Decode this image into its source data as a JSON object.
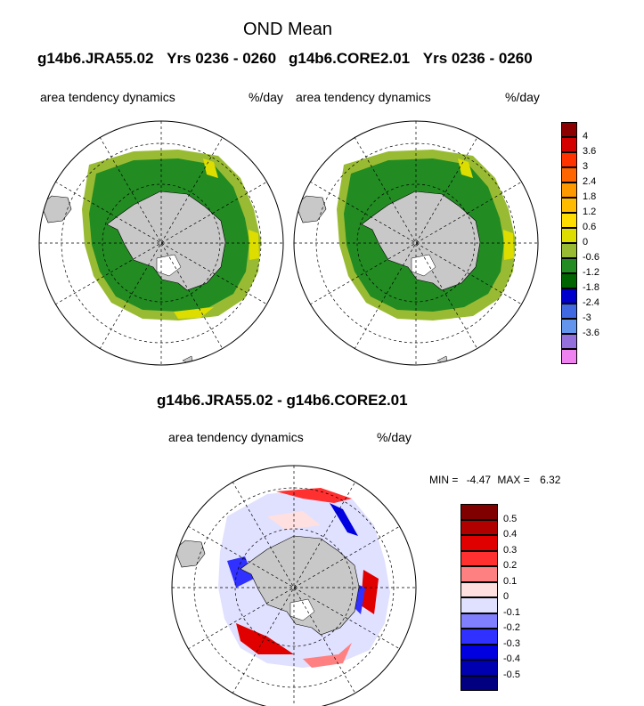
{
  "main_title": "OND Mean",
  "panel_left": {
    "case": "g14b6.JRA55.02",
    "years": "Yrs 0236 - 0260",
    "variable": "area tendency dynamics",
    "units": "%/day"
  },
  "panel_right": {
    "case": "g14b6.CORE2.01",
    "years": "Yrs 0236 - 0260",
    "variable": "area tendency dynamics",
    "units": "%/day"
  },
  "diff_panel": {
    "title": "g14b6.JRA55.02 - g14b6.CORE2.01",
    "variable": "area tendency dynamics",
    "units": "%/day",
    "min_label": "MIN =",
    "min_value": "-4.47",
    "max_label": "MAX =",
    "max_value": "6.32"
  },
  "colorbar_top": {
    "labels": [
      "4",
      "3.6",
      "3",
      "2.4",
      "1.8",
      "1.2",
      "0.6",
      "0",
      "-0.6",
      "-1.2",
      "-1.8",
      "-2.4",
      "-3",
      "-3.6"
    ],
    "colors": [
      "#8b0000",
      "#d40000",
      "#ff3300",
      "#ff6600",
      "#ff9900",
      "#ffbb00",
      "#ffdd00",
      "#dddd00",
      "#99bb33",
      "#228b22",
      "#006400",
      "#0000cd",
      "#4169e1",
      "#6495ed",
      "#9370db",
      "#ee82ee"
    ]
  },
  "colorbar_bottom": {
    "labels": [
      "0.5",
      "0.4",
      "0.3",
      "0.2",
      "0.1",
      "0",
      "-0.1",
      "-0.2",
      "-0.3",
      "-0.4",
      "-0.5"
    ],
    "colors": [
      "#800000",
      "#b00000",
      "#e00000",
      "#ff3030",
      "#ff8080",
      "#ffe0e0",
      "#e0e0ff",
      "#8080ff",
      "#3030ff",
      "#0000e0",
      "#0000b0",
      "#000080"
    ]
  },
  "colors": {
    "land": "#c8c8c8",
    "ice_green": "#228b22",
    "ice_light_green": "#99bb33",
    "ice_yellow": "#dddd00"
  }
}
